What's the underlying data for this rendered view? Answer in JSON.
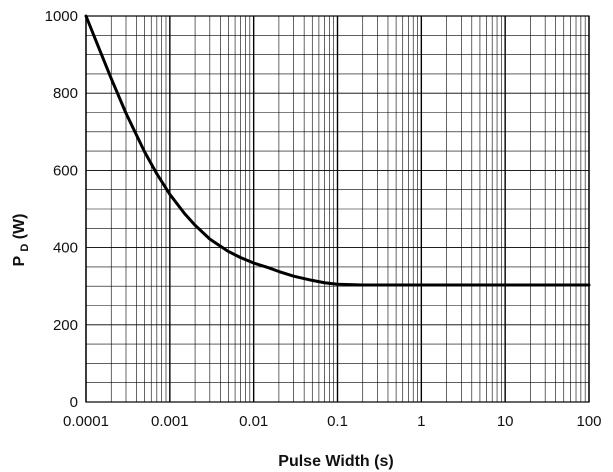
{
  "chart_data": {
    "type": "line",
    "xscale": "log",
    "x_range": [
      0.0001,
      100
    ],
    "ylim": [
      0,
      1000
    ],
    "grid": true,
    "xlabel": "Pulse Width (s)",
    "ylabel_main": "P",
    "ylabel_sub": "D",
    "ylabel_unit": " (W)",
    "x_ticks": [
      {
        "value": 0.0001,
        "label": "0.0001"
      },
      {
        "value": 0.001,
        "label": "0.001"
      },
      {
        "value": 0.01,
        "label": "0.01"
      },
      {
        "value": 0.1,
        "label": "0.1"
      },
      {
        "value": 1,
        "label": "1"
      },
      {
        "value": 10,
        "label": "10"
      },
      {
        "value": 100,
        "label": "100"
      }
    ],
    "y_ticks": [
      {
        "value": 0,
        "label": "0"
      },
      {
        "value": 200,
        "label": "200"
      },
      {
        "value": 400,
        "label": "400"
      },
      {
        "value": 600,
        "label": "600"
      },
      {
        "value": 800,
        "label": "800"
      },
      {
        "value": 1000,
        "label": "1000"
      }
    ],
    "series": [
      {
        "color": "#000000",
        "points": [
          {
            "x": 0.0001,
            "y": 1000
          },
          {
            "x": 0.00015,
            "y": 905
          },
          {
            "x": 0.0002,
            "y": 838
          },
          {
            "x": 0.0003,
            "y": 748
          },
          {
            "x": 0.0005,
            "y": 648
          },
          {
            "x": 0.0007,
            "y": 591
          },
          {
            "x": 0.001,
            "y": 538
          },
          {
            "x": 0.0015,
            "y": 488
          },
          {
            "x": 0.002,
            "y": 458
          },
          {
            "x": 0.003,
            "y": 422
          },
          {
            "x": 0.005,
            "y": 390
          },
          {
            "x": 0.007,
            "y": 374
          },
          {
            "x": 0.01,
            "y": 360
          },
          {
            "x": 0.015,
            "y": 348
          },
          {
            "x": 0.02,
            "y": 338
          },
          {
            "x": 0.03,
            "y": 326
          },
          {
            "x": 0.05,
            "y": 315
          },
          {
            "x": 0.07,
            "y": 309
          },
          {
            "x": 0.1,
            "y": 305
          },
          {
            "x": 0.2,
            "y": 303
          },
          {
            "x": 0.5,
            "y": 303
          },
          {
            "x": 1,
            "y": 303
          },
          {
            "x": 10,
            "y": 303
          },
          {
            "x": 100,
            "y": 303
          }
        ]
      }
    ]
  }
}
